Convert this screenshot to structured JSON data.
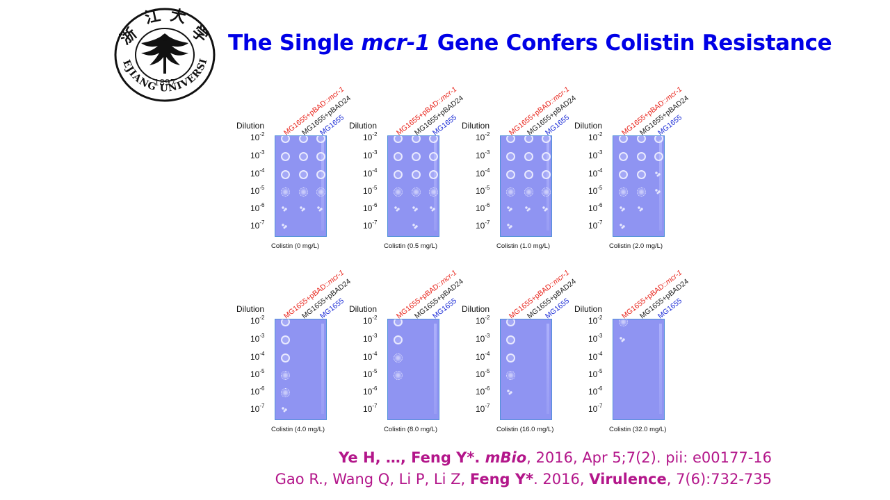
{
  "logo": {
    "university": "ZHEJIANG UNIVERSITY",
    "year": "1897",
    "chinese_characters": "浙江大学"
  },
  "title": {
    "before": "The Single ",
    "gene": "mcr-1",
    "after": " Gene Confers Colistin Resistance"
  },
  "figure": {
    "dilution_label": "Dilution",
    "strains": [
      {
        "prefix": "MG1655+pBAD::",
        "gene": "mcr-1",
        "color": "#e8231a"
      },
      {
        "prefix": "MG1655+pBAD24",
        "gene": "",
        "color": "#222222"
      },
      {
        "prefix": "MG1655",
        "gene": "",
        "color": "#1a2bd6"
      }
    ],
    "dilutions": [
      {
        "base": "10",
        "exp": "-2"
      },
      {
        "base": "10",
        "exp": "-3"
      },
      {
        "base": "10",
        "exp": "-4"
      },
      {
        "base": "10",
        "exp": "-5"
      },
      {
        "base": "10",
        "exp": "-6"
      },
      {
        "base": "10",
        "exp": "-7"
      }
    ],
    "panels": [
      {
        "label": "Colistin (0 mg/L)",
        "growth": [
          [
            3,
            3,
            3
          ],
          [
            3,
            3,
            3
          ],
          [
            3,
            3,
            3
          ],
          [
            2,
            2,
            2
          ],
          [
            1,
            1,
            1
          ],
          [
            1,
            0,
            0
          ]
        ]
      },
      {
        "label": "Colistin (0.5 mg/L)",
        "growth": [
          [
            3,
            3,
            3
          ],
          [
            3,
            3,
            3
          ],
          [
            3,
            3,
            3
          ],
          [
            2,
            2,
            2
          ],
          [
            1,
            1,
            1
          ],
          [
            0,
            1,
            0
          ]
        ]
      },
      {
        "label": "Colistin (1.0 mg/L)",
        "growth": [
          [
            3,
            3,
            3
          ],
          [
            3,
            3,
            3
          ],
          [
            3,
            3,
            3
          ],
          [
            2,
            2,
            2
          ],
          [
            1,
            1,
            1
          ],
          [
            1,
            0,
            0
          ]
        ]
      },
      {
        "label": "Colistin (2.0 mg/L)",
        "growth": [
          [
            3,
            3,
            3
          ],
          [
            3,
            3,
            3
          ],
          [
            3,
            3,
            1
          ],
          [
            2,
            2,
            1
          ],
          [
            1,
            1,
            0
          ],
          [
            1,
            0,
            0
          ]
        ]
      },
      {
        "label": "Colistin (4.0 mg/L)",
        "growth": [
          [
            3,
            0,
            0
          ],
          [
            3,
            0,
            0
          ],
          [
            3,
            0,
            0
          ],
          [
            2,
            0,
            0
          ],
          [
            2,
            0,
            0
          ],
          [
            1,
            0,
            0
          ]
        ]
      },
      {
        "label": "Colistin (8.0 mg/L)",
        "growth": [
          [
            3,
            0,
            0
          ],
          [
            3,
            0,
            0
          ],
          [
            2,
            0,
            0
          ],
          [
            2,
            0,
            0
          ],
          [
            0,
            0,
            0
          ],
          [
            0,
            0,
            0
          ]
        ]
      },
      {
        "label": "Colistin (16.0 mg/L)",
        "growth": [
          [
            3,
            0,
            0
          ],
          [
            3,
            0,
            0
          ],
          [
            3,
            0,
            0
          ],
          [
            2,
            0,
            0
          ],
          [
            1,
            0,
            0
          ],
          [
            0,
            0,
            0
          ]
        ]
      },
      {
        "label": "Colistin (32.0 mg/L)",
        "growth": [
          [
            2,
            0,
            0
          ],
          [
            1,
            0,
            0
          ],
          [
            0,
            0,
            0
          ],
          [
            0,
            0,
            0
          ],
          [
            0,
            0,
            0
          ],
          [
            0,
            0,
            0
          ]
        ]
      }
    ]
  },
  "citations": {
    "line1": {
      "authors": "Ye H, …, Feng Y*. ",
      "journal": "mBio",
      "rest": ", 2016, Apr 5;7(2). pii: e00177-16"
    },
    "line2": {
      "authors_plain": "Gao R., Wang Q, Li P, Li Z, ",
      "authors_bold": "Feng Y*",
      "year": ". 2016, ",
      "journal": "Virulence",
      "rest": ", 7(6):732-735"
    }
  }
}
